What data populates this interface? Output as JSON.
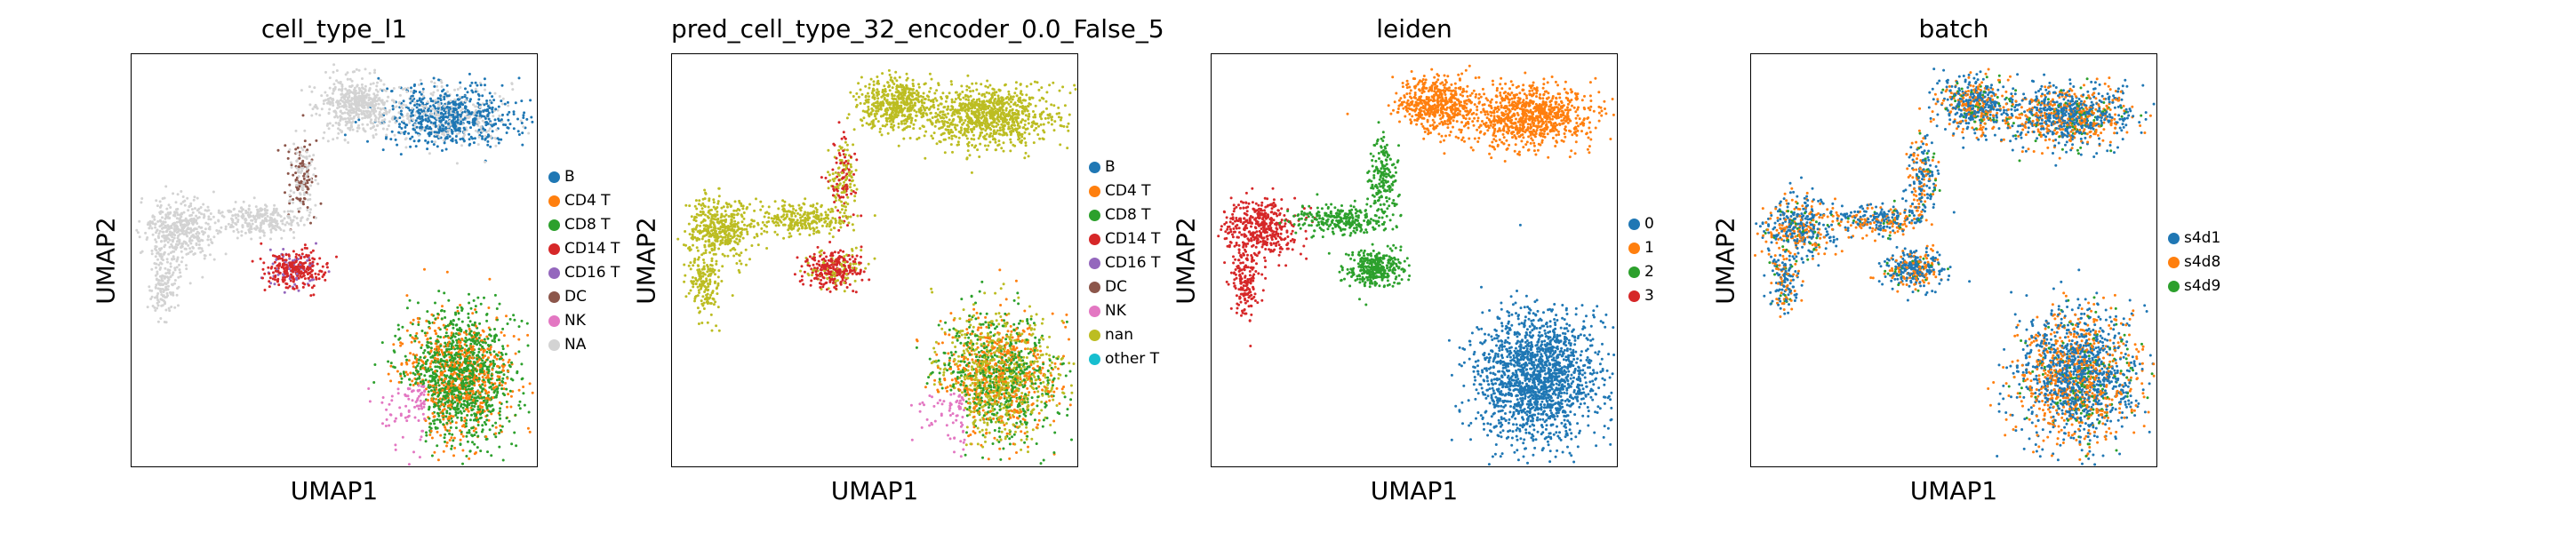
{
  "chart_data": [
    {
      "type": "scatter",
      "title": "cell_type_l1",
      "xlabel": "UMAP1",
      "ylabel": "UMAP2",
      "grid": false,
      "axis_ticks": false,
      "legend_position": "right",
      "categories": [
        {
          "name": "B",
          "color": "#1f77b4"
        },
        {
          "name": "CD4 T",
          "color": "#ff7f0e"
        },
        {
          "name": "CD8 T",
          "color": "#2ca02c"
        },
        {
          "name": "CD14 T",
          "color": "#d62728"
        },
        {
          "name": "CD16 T",
          "color": "#9467bd"
        },
        {
          "name": "DC",
          "color": "#8c564b"
        },
        {
          "name": "NK",
          "color": "#e377c2"
        },
        {
          "name": "NA",
          "color": "#d3d3d3"
        }
      ]
    },
    {
      "type": "scatter",
      "title": "pred_cell_type_32_encoder_0.0_False_5",
      "xlabel": "UMAP1",
      "ylabel": "UMAP2",
      "grid": false,
      "axis_ticks": false,
      "legend_position": "right",
      "categories": [
        {
          "name": "B",
          "color": "#1f77b4"
        },
        {
          "name": "CD4 T",
          "color": "#ff7f0e"
        },
        {
          "name": "CD8 T",
          "color": "#2ca02c"
        },
        {
          "name": "CD14 T",
          "color": "#d62728"
        },
        {
          "name": "CD16 T",
          "color": "#9467bd"
        },
        {
          "name": "DC",
          "color": "#8c564b"
        },
        {
          "name": "NK",
          "color": "#e377c2"
        },
        {
          "name": "nan",
          "color": "#bcbd22"
        },
        {
          "name": "other T",
          "color": "#17becf"
        }
      ]
    },
    {
      "type": "scatter",
      "title": "leiden",
      "xlabel": "UMAP1",
      "ylabel": "UMAP2",
      "grid": false,
      "axis_ticks": false,
      "legend_position": "right",
      "categories": [
        {
          "name": "0",
          "color": "#1f77b4"
        },
        {
          "name": "1",
          "color": "#ff7f0e"
        },
        {
          "name": "2",
          "color": "#2ca02c"
        },
        {
          "name": "3",
          "color": "#d62728"
        }
      ]
    },
    {
      "type": "scatter",
      "title": "batch",
      "xlabel": "UMAP1",
      "ylabel": "UMAP2",
      "grid": false,
      "axis_ticks": false,
      "legend_position": "right",
      "categories": [
        {
          "name": "s4d1",
          "color": "#1f77b4"
        },
        {
          "name": "s4d8",
          "color": "#ff7f0e"
        },
        {
          "name": "s4d9",
          "color": "#2ca02c"
        }
      ]
    }
  ]
}
